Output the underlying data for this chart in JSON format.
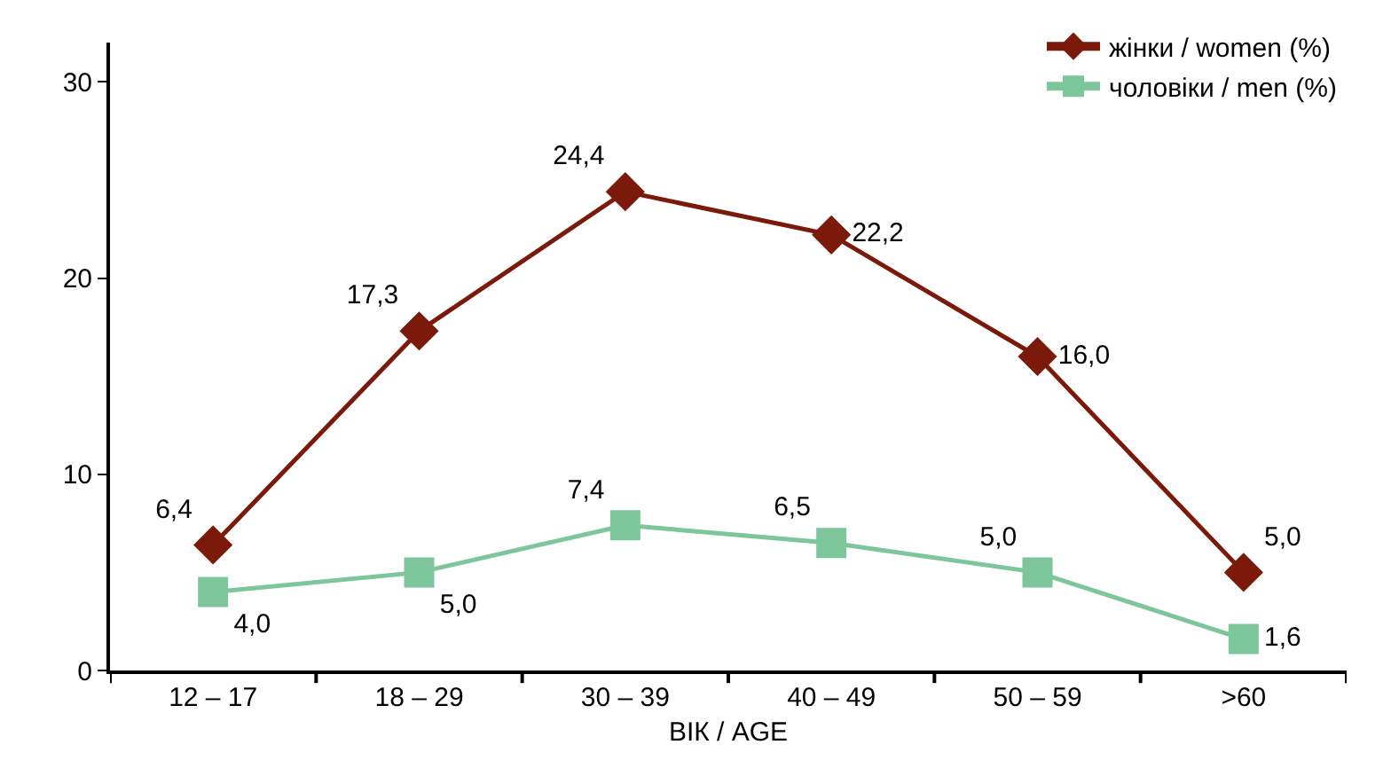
{
  "chart_data": {
    "type": "line",
    "xlabel": "ВІК / AGE",
    "categories": [
      "12 – 17",
      "18 – 29",
      "30 – 39",
      "40 – 49",
      "50 – 59",
      ">60"
    ],
    "series": [
      {
        "name": "жінки / women (%)",
        "color": "#7b1a0a",
        "marker": "diamond",
        "values": [
          6.4,
          17.3,
          24.4,
          22.2,
          16.0,
          5.0
        ],
        "value_labels": [
          "6,4",
          "17,3",
          "24,4",
          "22,2",
          "16,0",
          "5,0"
        ]
      },
      {
        "name": "чоловіки / men (%)",
        "color": "#7dc59a",
        "marker": "square",
        "values": [
          4.0,
          5.0,
          7.4,
          6.5,
          5.0,
          1.6
        ],
        "value_labels": [
          "4,0",
          "5,0",
          "7,4",
          "6,5",
          "5,0",
          "1,6"
        ]
      }
    ],
    "ylim": [
      0,
      32
    ],
    "yticks": [
      0,
      10,
      20,
      30
    ],
    "grid": false,
    "legend": "top right",
    "line_style": "solid"
  }
}
